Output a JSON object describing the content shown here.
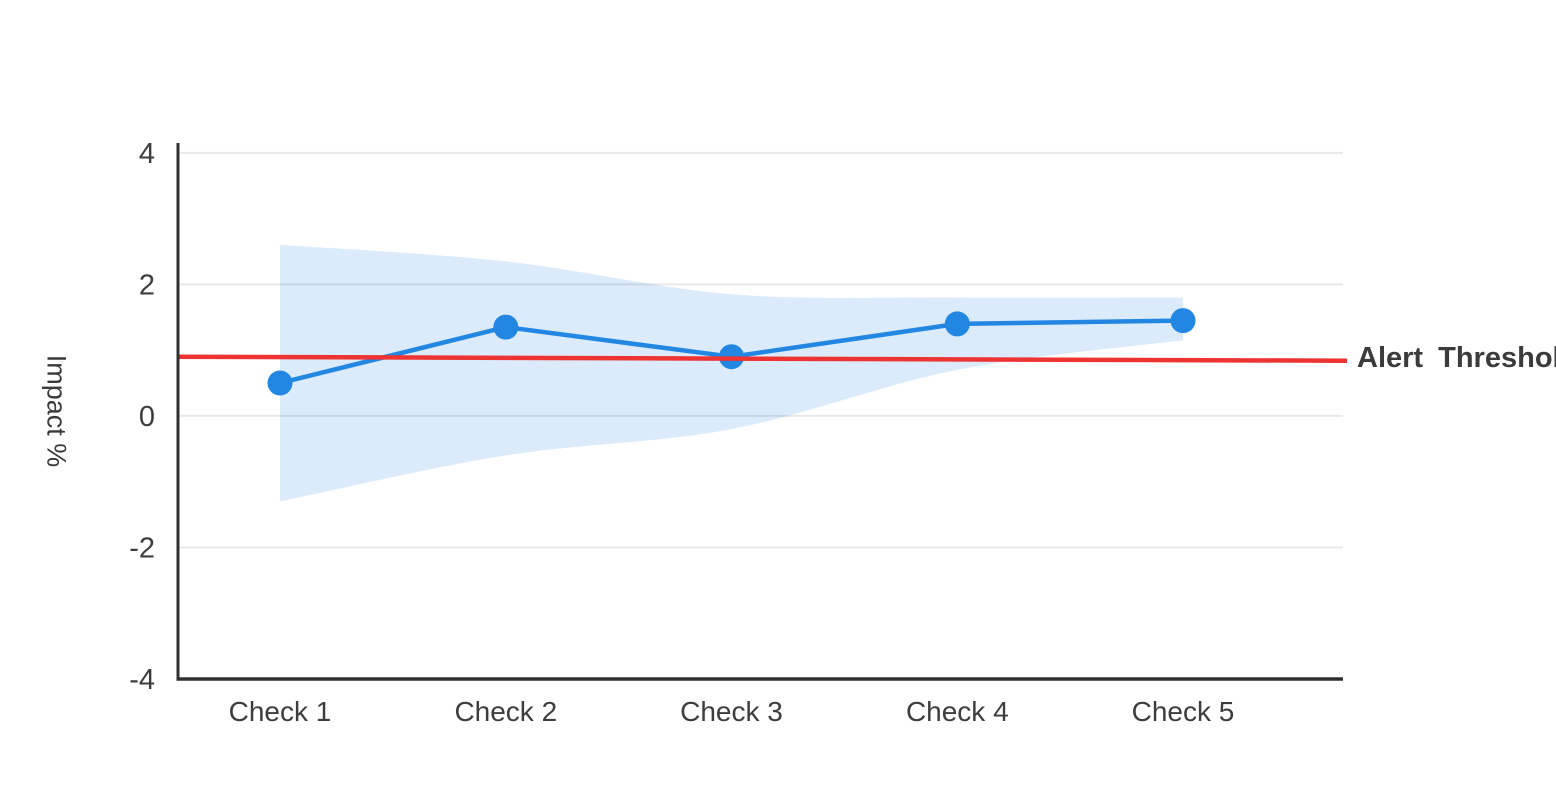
{
  "chart_data": {
    "type": "line",
    "title": "",
    "categories": [
      "Check 1",
      "Check 2",
      "Check 3",
      "Check 4",
      "Check 5"
    ],
    "series": [
      {
        "name": "impact",
        "values": [
          0.5,
          1.35,
          0.9,
          1.4,
          1.45
        ],
        "color": "#2287e2",
        "marker": "circle",
        "marker_radius": 12.5,
        "line_width": 4.5
      }
    ],
    "band": {
      "name": "confidence-band",
      "upper": [
        2.6,
        2.35,
        1.85,
        1.8,
        1.8
      ],
      "lower": [
        -1.3,
        -0.6,
        -0.2,
        0.7,
        1.15
      ],
      "color": "#dcebfb"
    },
    "threshold": {
      "label": "Alert Threshold",
      "start_value": 0.9,
      "end_value": 0.84,
      "color": "#ee3333",
      "line_width": 4.5
    },
    "xlabel": "",
    "ylabel": "Impact %",
    "yticks": [
      4,
      2,
      0,
      -2,
      -4
    ],
    "ylim": [
      -4,
      4.15
    ],
    "grid": true,
    "legend_position": "none",
    "annotation_position": "right-of-plot-end"
  },
  "colors": {
    "background": "#ffffff",
    "axis": "#303030",
    "grid": "rgba(0,0,0,0.09)",
    "tick_text": "#3d3d3d",
    "label_text": "#3a3a3a"
  }
}
